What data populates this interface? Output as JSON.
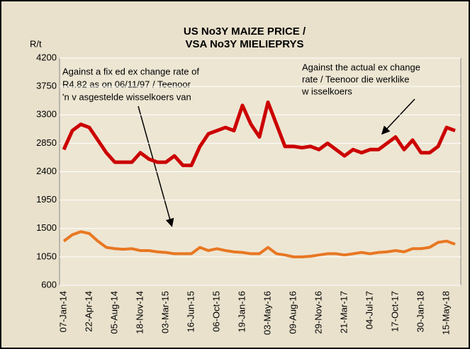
{
  "chart_data": {
    "type": "line",
    "title": [
      "US No3Y MAIZE PRICE /",
      "VSA No3Y MIELIEPRYS"
    ],
    "y_label": "R/t",
    "annotations": [
      [
        "Against a fix ed ex change rate of",
        "R4.82  as on 06/11/97 /  Teenoor",
        "'n v asgestelde  wisselkoers van"
      ],
      [
        "Against the actual ex change",
        "rate /  Teenoor die werklike",
        "w isselkoers"
      ]
    ],
    "categories": [
      "07-Jan-14",
      null,
      null,
      "22-Apr-14",
      null,
      null,
      "05-Aug-14",
      null,
      null,
      "18-Nov-14",
      null,
      null,
      "03-Mar-15",
      null,
      null,
      "16-Jun-15",
      null,
      null,
      "06-Oct-15",
      null,
      null,
      "19-Jan-16",
      null,
      null,
      "03-May-16",
      null,
      null,
      "09-Aug-16",
      null,
      null,
      "29-Nov-16",
      null,
      null,
      "21-Mar-17",
      null,
      null,
      "04-Jul-17",
      null,
      null,
      "17-Oct-17",
      null,
      null,
      "30-Jan-18",
      null,
      null,
      "15-May-18",
      null
    ],
    "series": [
      {
        "color": "#cc0000",
        "values": [
          2750,
          3050,
          3150,
          3100,
          2900,
          2700,
          2550,
          2550,
          2550,
          2700,
          2600,
          2550,
          2550,
          2650,
          2500,
          2500,
          2800,
          3000,
          3050,
          3100,
          3050,
          3450,
          3150,
          2950,
          3500,
          3150,
          2800,
          2800,
          2780,
          2800,
          2750,
          2850,
          2750,
          2650,
          2750,
          2700,
          2750,
          2750,
          2850,
          2950,
          2750,
          2900,
          2700,
          2700,
          2800,
          3100,
          3050
        ]
      },
      {
        "color": "#e87722",
        "values": [
          1300,
          1400,
          1450,
          1420,
          1300,
          1200,
          1180,
          1170,
          1180,
          1150,
          1150,
          1130,
          1120,
          1100,
          1100,
          1100,
          1200,
          1150,
          1180,
          1150,
          1130,
          1120,
          1100,
          1100,
          1200,
          1100,
          1080,
          1050,
          1050,
          1060,
          1080,
          1100,
          1100,
          1080,
          1100,
          1120,
          1100,
          1120,
          1130,
          1150,
          1130,
          1180,
          1180,
          1200,
          1280,
          1300,
          1250
        ]
      }
    ],
    "ylim": [
      600,
      4200
    ],
    "yticks": [
      600,
      1050,
      1500,
      1950,
      2400,
      2850,
      3300,
      3750,
      4200
    ],
    "grid": true
  }
}
